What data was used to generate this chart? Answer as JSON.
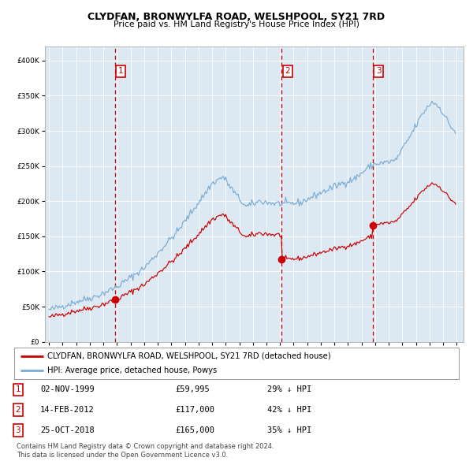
{
  "title": "CLYDFAN, BRONWYLFA ROAD, WELSHPOOL, SY21 7RD",
  "subtitle": "Price paid vs. HM Land Registry's House Price Index (HPI)",
  "legend_label_red": "CLYDFAN, BRONWYLFA ROAD, WELSHPOOL, SY21 7RD (detached house)",
  "legend_label_blue": "HPI: Average price, detached house, Powys",
  "transactions": [
    {
      "num": 1,
      "date": "02-NOV-1999",
      "price": 59995,
      "pct": "29%",
      "dir": "↓"
    },
    {
      "num": 2,
      "date": "14-FEB-2012",
      "price": 117000,
      "pct": "42%",
      "dir": "↓"
    },
    {
      "num": 3,
      "date": "25-OCT-2018",
      "price": 165000,
      "pct": "35%",
      "dir": "↓"
    }
  ],
  "transaction_dates_decimal": [
    1999.84,
    2012.12,
    2018.81
  ],
  "footnote1": "Contains HM Land Registry data © Crown copyright and database right 2024.",
  "footnote2": "This data is licensed under the Open Government Licence v3.0.",
  "ylim": [
    0,
    420000
  ],
  "xlim_start": 1994.7,
  "xlim_end": 2025.5,
  "background_color": "#dce8f2",
  "red_color": "#cc0000",
  "blue_color": "#7aacd4",
  "hpi_anchors_t": [
    1995.0,
    1997.0,
    1998.5,
    2000.0,
    2002.0,
    2004.5,
    2007.0,
    2007.8,
    2008.8,
    2009.5,
    2010.5,
    2011.5,
    2012.5,
    2013.5,
    2015.0,
    2016.5,
    2017.5,
    2018.5,
    2019.0,
    2019.8,
    2020.5,
    2021.5,
    2022.5,
    2023.2,
    2023.8,
    2024.5,
    2024.9
  ],
  "hpi_anchors_v": [
    45000,
    57000,
    65000,
    78000,
    105000,
    158000,
    225000,
    235000,
    208000,
    192000,
    200000,
    197000,
    196000,
    198000,
    212000,
    225000,
    232000,
    248000,
    253000,
    255000,
    258000,
    290000,
    325000,
    342000,
    332000,
    308000,
    298000
  ],
  "noise_scale": 2500,
  "random_seed": 42
}
